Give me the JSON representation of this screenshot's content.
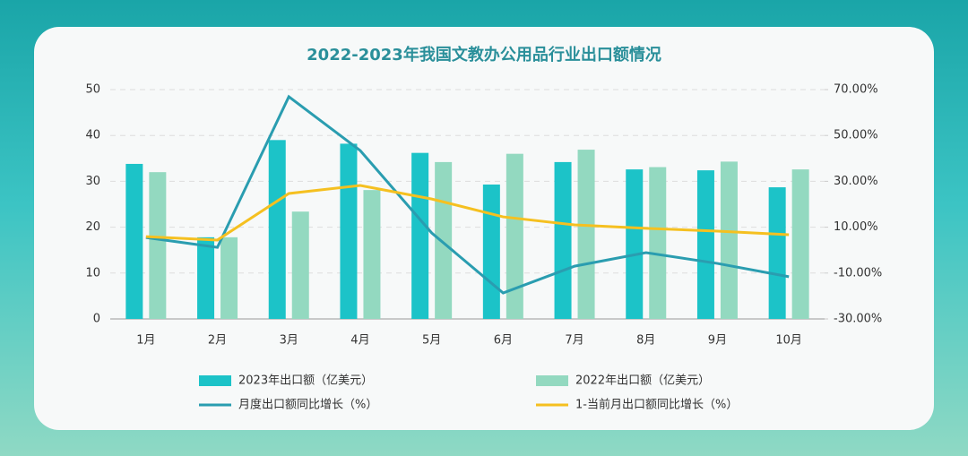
{
  "chart_data": {
    "type": "bar-line",
    "title": "2022-2023年我国文教办公用品行业出口额情况",
    "categories": [
      "1月",
      "2月",
      "3月",
      "4月",
      "5月",
      "6月",
      "7月",
      "8月",
      "9月",
      "10月"
    ],
    "ylim": [
      0,
      50
    ],
    "yticks": [
      0,
      10,
      20,
      30,
      40,
      50
    ],
    "y2lim": [
      -30,
      70
    ],
    "y2ticks": [
      {
        "value": -30,
        "label": "-30.00%"
      },
      {
        "value": -10,
        "label": "-10.00%"
      },
      {
        "value": 10,
        "label": "10.00%"
      },
      {
        "value": 30,
        "label": "30.00%"
      },
      {
        "value": 50,
        "label": "50.00%"
      },
      {
        "value": 70,
        "label": "70.00%"
      }
    ],
    "grid": true,
    "series": [
      {
        "name": "2023年出口额（亿美元）",
        "type": "bar",
        "color": "#1cc3c8",
        "values": [
          33.8,
          17.8,
          39,
          38.2,
          36.2,
          29.3,
          34.2,
          32.6,
          32.4,
          28.7
        ]
      },
      {
        "name": "2022年出口额（亿美元）",
        "type": "bar",
        "color": "#93d9c0",
        "values": [
          32,
          17.8,
          23.4,
          28.1,
          34.2,
          36,
          36.9,
          33.1,
          34.3,
          32.6
        ]
      },
      {
        "name": "月度出口额同比增长（%）",
        "type": "line",
        "axis": "y2",
        "color": "#2a9db0",
        "values": [
          5.5,
          1.2,
          66.9,
          43.4,
          7.5,
          -18.7,
          -7,
          -1.1,
          -5.8,
          -11.6
        ]
      },
      {
        "name": "1-当前月出口额同比增长（%）",
        "type": "line",
        "axis": "y2",
        "color": "#f5c020",
        "values": [
          5.9,
          4.4,
          24.7,
          28.2,
          22.3,
          14.5,
          11,
          9.5,
          8.3,
          6.7
        ]
      }
    ]
  }
}
